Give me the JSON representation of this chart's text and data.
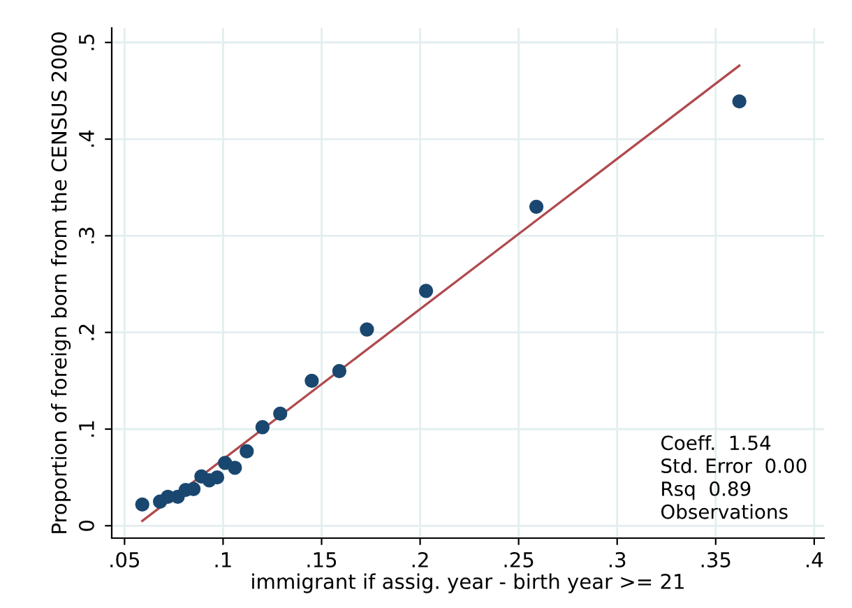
{
  "chart_data": {
    "type": "scatter",
    "xlabel": "immigrant if assig. year - birth year >= 21",
    "ylabel": "Proportion of foreign born from the CENSUS 2000",
    "series": [
      {
        "color": "#1a476f",
        "marker": "circle",
        "x": [
          0.059,
          0.068,
          0.072,
          0.077,
          0.081,
          0.085,
          0.089,
          0.093,
          0.097,
          0.101,
          0.106,
          0.112,
          0.12,
          0.129,
          0.145,
          0.159,
          0.173,
          0.203,
          0.259,
          0.362
        ],
        "values": [
          0.022,
          0.025,
          0.03,
          0.03,
          0.037,
          0.038,
          0.051,
          0.047,
          0.05,
          0.065,
          0.06,
          0.077,
          0.102,
          0.116,
          0.15,
          0.16,
          0.203,
          0.243,
          0.33,
          0.439
        ]
      },
      {
        "type": "line",
        "color": "#b04a4e",
        "line_style": "solid",
        "marker": "none",
        "x": [
          0.059,
          0.362
        ],
        "values": [
          0.005,
          0.476
        ]
      }
    ],
    "xlim": [
      0.0435,
      0.405
    ],
    "ylim": [
      -0.0128,
      0.515
    ],
    "xticks": [
      {
        "value": 0.05,
        "label": ".05"
      },
      {
        "value": 0.1,
        "label": ".1"
      },
      {
        "value": 0.15,
        "label": ".15"
      },
      {
        "value": 0.2,
        "label": ".2"
      },
      {
        "value": 0.25,
        "label": ".25"
      },
      {
        "value": 0.3,
        "label": ".3"
      },
      {
        "value": 0.35,
        "label": ".35"
      },
      {
        "value": 0.4,
        "label": ".4"
      }
    ],
    "yticks": [
      0,
      {
        "value": 0.1,
        "label": ".1"
      },
      {
        "value": 0.2,
        "label": ".2"
      },
      {
        "value": 0.3,
        "label": ".3"
      },
      {
        "value": 0.4,
        "label": ".4"
      },
      {
        "value": 0.5,
        "label": ".5"
      }
    ],
    "grid": true,
    "annotations": [
      "Coeff.  1.54",
      "Std. Error  0.00",
      "Rsq  0.89",
      "Observations"
    ]
  }
}
